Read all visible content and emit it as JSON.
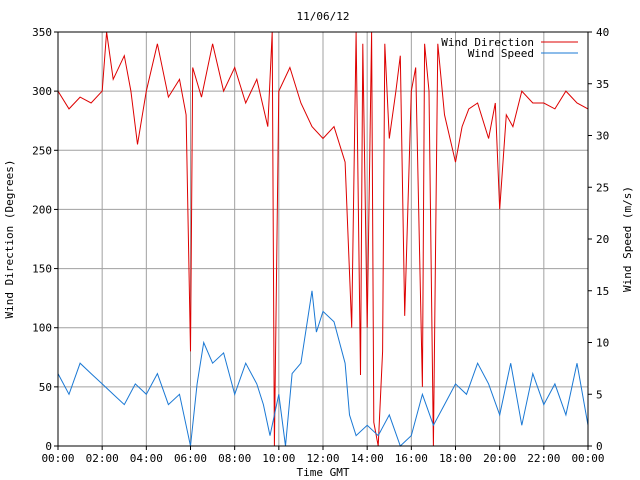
{
  "chart_data": {
    "type": "line",
    "title": "11/06/12",
    "xlabel": "Time GMT",
    "ylabel_left": "Wind Direction (Degrees)",
    "ylabel_right": "Wind Speed (m/s)",
    "x_ticks": [
      "00:00",
      "02:00",
      "04:00",
      "06:00",
      "08:00",
      "10:00",
      "12:00",
      "14:00",
      "16:00",
      "18:00",
      "20:00",
      "22:00",
      "00:00"
    ],
    "x_range_hours": [
      0,
      24
    ],
    "ylim_left": [
      0,
      350
    ],
    "yticks_left": [
      0,
      50,
      100,
      150,
      200,
      250,
      300,
      350
    ],
    "ylim_right": [
      0,
      40
    ],
    "yticks_right": [
      0,
      5,
      10,
      15,
      20,
      25,
      30,
      35,
      40
    ],
    "grid": true,
    "legend_position": "top-right",
    "series": [
      {
        "name": "Wind Direction",
        "axis": "left",
        "color": "#dd0000",
        "x": [
          0,
          0.5,
          1,
          1.5,
          2,
          2.2,
          2.5,
          3,
          3.3,
          3.6,
          4,
          4.5,
          5,
          5.5,
          5.8,
          5.9,
          6,
          6.1,
          6.5,
          7,
          7.5,
          8,
          8.5,
          9,
          9.5,
          9.7,
          9.8,
          10,
          10.5,
          11,
          11.5,
          12,
          12.5,
          13,
          13.3,
          13.5,
          13.7,
          13.8,
          14,
          14.2,
          14.3,
          14.5,
          14.7,
          14.8,
          15,
          15.3,
          15.5,
          15.7,
          16,
          16.2,
          16.5,
          16.6,
          16.8,
          17,
          17.2,
          17.5,
          18,
          18.3,
          18.6,
          19,
          19.5,
          19.8,
          20,
          20.3,
          20.6,
          21,
          21.5,
          22,
          22.5,
          23,
          23.5,
          24
        ],
        "values": [
          300,
          285,
          295,
          290,
          300,
          350,
          310,
          330,
          300,
          255,
          300,
          340,
          295,
          310,
          280,
          180,
          80,
          320,
          295,
          340,
          300,
          320,
          290,
          310,
          270,
          350,
          0,
          300,
          320,
          290,
          270,
          260,
          270,
          240,
          100,
          350,
          60,
          340,
          100,
          350,
          20,
          0,
          80,
          340,
          260,
          300,
          330,
          110,
          300,
          320,
          50,
          340,
          300,
          0,
          340,
          280,
          240,
          270,
          285,
          290,
          260,
          290,
          200,
          280,
          270,
          300,
          290,
          290,
          285,
          300,
          290,
          285
        ]
      },
      {
        "name": "Wind Speed",
        "axis": "right",
        "color": "#1a78d4",
        "x": [
          0,
          0.5,
          1,
          1.5,
          2,
          2.5,
          3,
          3.5,
          4,
          4.5,
          5,
          5.5,
          5.8,
          6,
          6.3,
          6.6,
          7,
          7.5,
          8,
          8.5,
          9,
          9.3,
          9.6,
          10,
          10.3,
          10.6,
          11,
          11.5,
          11.7,
          12,
          12.5,
          13,
          13.2,
          13.5,
          14,
          14.5,
          15,
          15.5,
          16,
          16.5,
          17,
          17.5,
          18,
          18.5,
          19,
          19.5,
          20,
          20.5,
          21,
          21.5,
          22,
          22.5,
          23,
          23.5,
          24
        ],
        "values": [
          7,
          5,
          8,
          7,
          6,
          5,
          4,
          6,
          5,
          7,
          4,
          5,
          2,
          0,
          6,
          10,
          8,
          9,
          5,
          8,
          6,
          4,
          1,
          5,
          0,
          7,
          8,
          15,
          11,
          13,
          12,
          8,
          3,
          1,
          2,
          1,
          3,
          0,
          1,
          5,
          2,
          4,
          6,
          5,
          8,
          6,
          3,
          8,
          2,
          7,
          4,
          6,
          3,
          8,
          2
        ]
      }
    ]
  }
}
